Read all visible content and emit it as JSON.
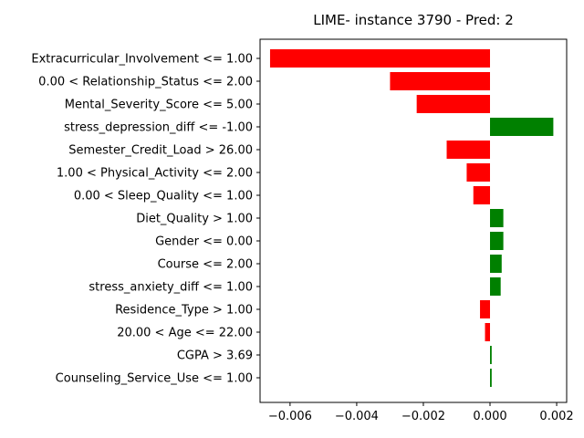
{
  "chart_data": {
    "type": "bar",
    "orientation": "horizontal",
    "title": "LIME- instance 3790 - Pred: 2",
    "xlabel": "",
    "ylabel": "",
    "xlim": [
      -0.0069,
      0.0023
    ],
    "x_ticks": [
      -0.006,
      -0.004,
      -0.002,
      0.0,
      0.002
    ],
    "x_tick_labels": [
      "−0.006",
      "−0.004",
      "−0.002",
      "0.000",
      "0.002"
    ],
    "grid": false,
    "legend": "none",
    "colors": {
      "positive": "#008000",
      "negative": "#ff0000"
    },
    "categories": [
      "Extracurricular_Involvement <= 1.00",
      "0.00 < Relationship_Status <= 2.00",
      "Mental_Severity_Score <= 5.00",
      "stress_depression_diff <= -1.00",
      "Semester_Credit_Load > 26.00",
      "1.00 < Physical_Activity <= 2.00",
      "0.00 < Sleep_Quality <= 1.00",
      "Diet_Quality > 1.00",
      "Gender <= 0.00",
      "Course <= 2.00",
      "stress_anxiety_diff <= 1.00",
      "Residence_Type > 1.00",
      "20.00 < Age <= 22.00",
      "CGPA > 3.69",
      "Counseling_Service_Use <= 1.00"
    ],
    "values": [
      -0.0066,
      -0.003,
      -0.0022,
      0.0019,
      -0.0013,
      -0.0007,
      -0.0005,
      0.0004,
      0.0004,
      0.00035,
      0.00032,
      -0.0003,
      -0.00015,
      5e-05,
      5e-05
    ]
  }
}
